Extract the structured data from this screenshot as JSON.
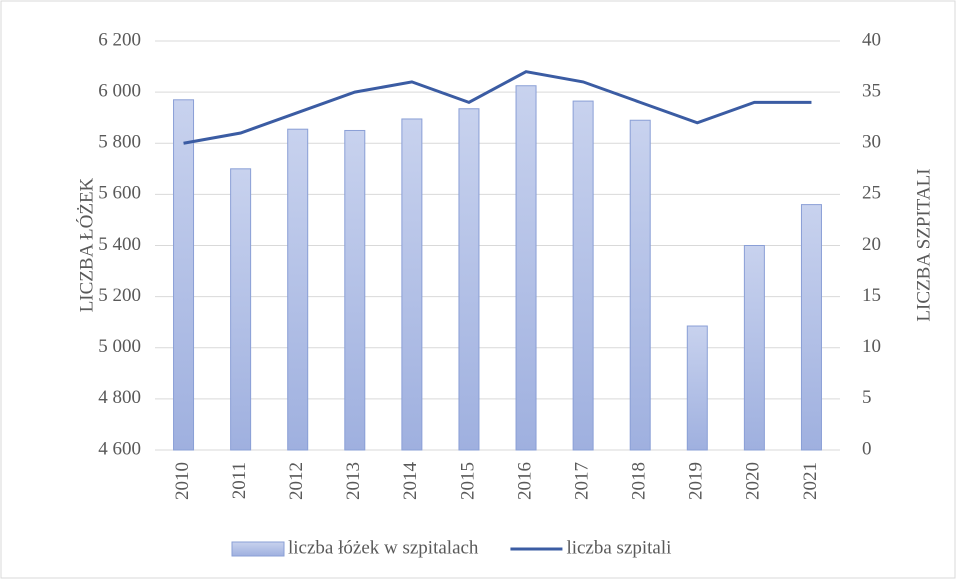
{
  "chart_data": {
    "type": "bar",
    "categories": [
      "2010",
      "2011",
      "2012",
      "2013",
      "2014",
      "2015",
      "2016",
      "2017",
      "2018",
      "2019",
      "2020",
      "2021"
    ],
    "series": [
      {
        "name": "liczba łóżek w szpitalach",
        "type": "bar",
        "color": "#b4c2e8",
        "axis": "y",
        "values": [
          5970,
          5700,
          5855,
          5850,
          5895,
          5935,
          6025,
          5965,
          5890,
          5085,
          5400,
          5560
        ]
      },
      {
        "name": "liczba szpitali",
        "type": "line",
        "color": "#3b5ca3",
        "axis": "y2",
        "values": [
          30,
          31,
          33,
          35,
          36,
          34,
          37,
          36,
          34,
          32,
          34,
          34
        ]
      }
    ],
    "y_label": "LICZBA ŁÓŻEK",
    "y2_label": "LICZBA SZPITALI",
    "ylim": [
      4600,
      6200
    ],
    "yticks": [
      {
        "value": 4600,
        "label": "4 600"
      },
      {
        "value": 4800,
        "label": "4 800"
      },
      {
        "value": 5000,
        "label": "5 000"
      },
      {
        "value": 5200,
        "label": "5 200"
      },
      {
        "value": 5400,
        "label": "5 400"
      },
      {
        "value": 5600,
        "label": "5 600"
      },
      {
        "value": 5800,
        "label": "5 800"
      },
      {
        "value": 6000,
        "label": "6 000"
      },
      {
        "value": 6200,
        "label": "6 200"
      }
    ],
    "y2lim": [
      0,
      40
    ],
    "y2ticks": [
      0,
      5,
      10,
      15,
      20,
      25,
      30,
      35,
      40
    ],
    "grid": true,
    "legend": "bottom"
  }
}
